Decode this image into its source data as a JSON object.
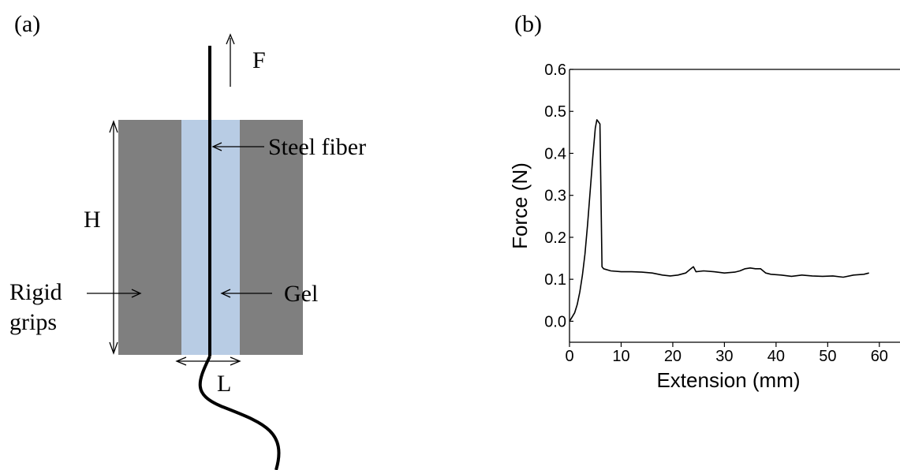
{
  "panel_a": {
    "label": "(a)",
    "force_label": "F",
    "fiber_label": "Steel fiber",
    "height_label": "H",
    "grips_label_line1": "Rigid",
    "grips_label_line2": "grips",
    "gel_label": "Gel",
    "width_label": "L",
    "colors": {
      "grip": "#7f7f7f",
      "gel": "#b8cce4",
      "fiber": "#000000"
    }
  },
  "panel_b": {
    "label": "(b)"
  },
  "chart_data": {
    "type": "line",
    "xlabel": "Extension (mm)",
    "ylabel": "Force (N)",
    "xlim": [
      0,
      64
    ],
    "ylim": [
      -0.05,
      0.6
    ],
    "xticks": [
      0,
      10,
      20,
      30,
      40,
      50,
      60
    ],
    "yticks": [
      0.0,
      0.1,
      0.2,
      0.3,
      0.4,
      0.5,
      0.6
    ],
    "ytick_labels": [
      "0.0",
      "0.1",
      "0.2",
      "0.3",
      "0.4",
      "0.5",
      "0.6"
    ],
    "grid": false,
    "series": [
      {
        "x": [
          0,
          0.5,
          1,
          1.5,
          2,
          2.5,
          3,
          3.5,
          4,
          4.5,
          5,
          5.3,
          5.6,
          5.9,
          6.1,
          6.3,
          6.6,
          8,
          10,
          12,
          14,
          16,
          18,
          19.5,
          21,
          22.5,
          23.5,
          24,
          24.5,
          26,
          28,
          30,
          32,
          33,
          34,
          35,
          36,
          37,
          38,
          39,
          41,
          43,
          45,
          47,
          49,
          51,
          53,
          55,
          57,
          58
        ],
        "y": [
          0.0,
          0.01,
          0.02,
          0.04,
          0.07,
          0.11,
          0.16,
          0.23,
          0.31,
          0.39,
          0.46,
          0.48,
          0.475,
          0.47,
          0.3,
          0.13,
          0.125,
          0.12,
          0.118,
          0.118,
          0.117,
          0.115,
          0.11,
          0.108,
          0.11,
          0.115,
          0.125,
          0.13,
          0.118,
          0.12,
          0.118,
          0.115,
          0.117,
          0.12,
          0.125,
          0.127,
          0.125,
          0.125,
          0.115,
          0.112,
          0.11,
          0.107,
          0.11,
          0.108,
          0.107,
          0.108,
          0.105,
          0.11,
          0.112,
          0.115
        ]
      }
    ]
  }
}
